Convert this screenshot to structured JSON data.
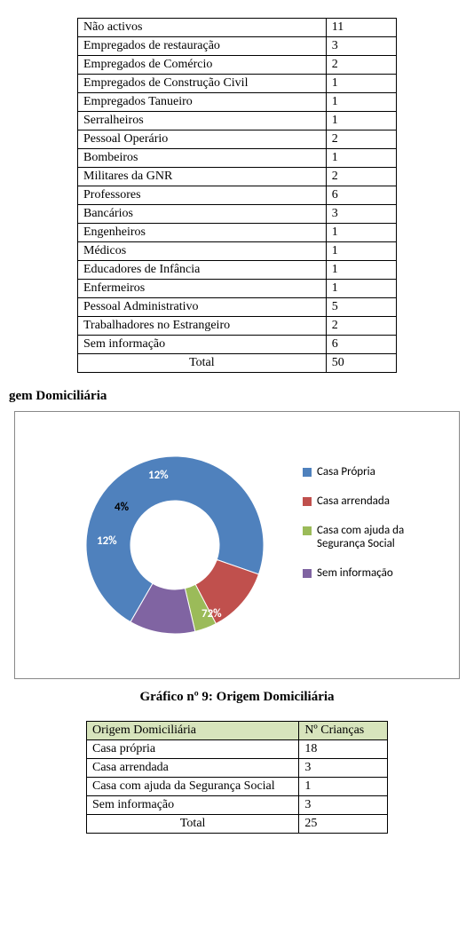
{
  "table1": {
    "rows": [
      {
        "label": "Não activos",
        "value": "11"
      },
      {
        "label": "Empregados de restauração",
        "value": "3"
      },
      {
        "label": "Empregados de Comércio",
        "value": "2"
      },
      {
        "label": "Empregados de Construção Civil",
        "value": "1"
      },
      {
        "label": "Empregados Tanueiro",
        "value": "1"
      },
      {
        "label": "Serralheiros",
        "value": "1"
      },
      {
        "label": "Pessoal Operário",
        "value": "2"
      },
      {
        "label": "Bombeiros",
        "value": "1"
      },
      {
        "label": "Militares da GNR",
        "value": "2"
      },
      {
        "label": "Professores",
        "value": "6"
      },
      {
        "label": "Bancários",
        "value": "3"
      },
      {
        "label": "Engenheiros",
        "value": "1"
      },
      {
        "label": "Médicos",
        "value": "1"
      },
      {
        "label": "Educadores de Infância",
        "value": "1"
      },
      {
        "label": "Enfermeiros",
        "value": "1"
      },
      {
        "label": "Pessoal Administrativo",
        "value": "5"
      },
      {
        "label": "Trabalhadores no Estrangeiro",
        "value": "2"
      },
      {
        "label": "Sem informação",
        "value": "6"
      }
    ],
    "total_label": "Total",
    "total_value": "50"
  },
  "section_heading": "gem Domiciliária",
  "chart": {
    "type": "donut",
    "slices": [
      {
        "label": "Casa Própria",
        "percent": 72,
        "color": "#4f81bd",
        "pct_text": "72%"
      },
      {
        "label": "Casa arrendada",
        "percent": 12,
        "color": "#c0504d",
        "pct_text": "12%"
      },
      {
        "label": "Casa com ajuda da Segurança Social",
        "percent": 4,
        "color": "#9bbb59",
        "pct_text": "4%"
      },
      {
        "label": "Sem informação",
        "percent": 12,
        "color": "#8064a2",
        "pct_text": "12%"
      }
    ],
    "legend_colors": {
      "casa_propria": "#4f81bd",
      "casa_arrendada": "#c0504d",
      "casa_seguranca": "#9bbb59",
      "sem_info": "#8064a2"
    },
    "inner_hole_color": "#ffffff",
    "background": "#ffffff",
    "border_color": "#888888",
    "start_angle_deg": 210,
    "font_family": "Calibri",
    "label_font_size": 13,
    "legend_font_size": 13,
    "caption": "Gráfico nº 9: Origem Domiciliária"
  },
  "table2": {
    "header1": "Origem Domiciliária",
    "header2": " Nº Crianças",
    "header_bg": "#d7e4bc",
    "rows": [
      {
        "label": "Casa própria",
        "value": "18"
      },
      {
        "label": "Casa arrendada",
        "value": "3"
      },
      {
        "label": "Casa com ajuda da Segurança Social",
        "value": "1"
      },
      {
        "label": "Sem informação",
        "value": "3"
      }
    ],
    "total_label": "Total",
    "total_value": "25"
  }
}
